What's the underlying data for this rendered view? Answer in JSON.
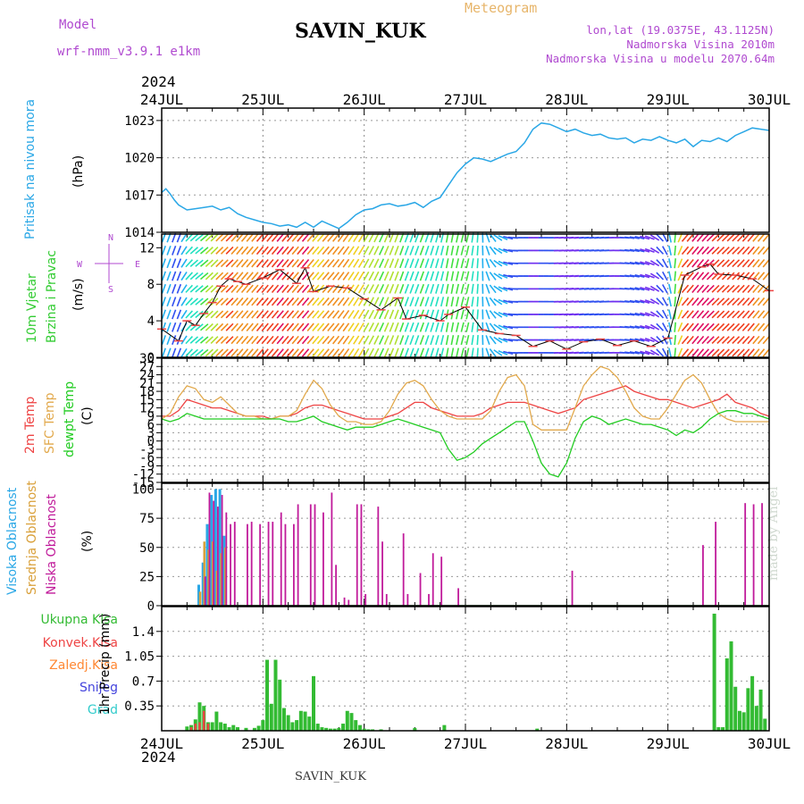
{
  "header": {
    "model_label": "Model",
    "model_name": "wrf-nmm_v3.9.1 e1km",
    "station": "SAVIN_KUK",
    "title": "Meteogram",
    "lonlat": "lon,lat (19.0375E, 43.1125N)",
    "altitude": "Nadmorska Visina 2010m",
    "model_altitude": "Nadmorska Visina u modelu 2070.64m"
  },
  "time_axis": {
    "year": "2024",
    "labels": [
      "24JUL",
      "25JUL",
      "26JUL",
      "27JUL",
      "28JUL",
      "29JUL",
      "30JUL"
    ]
  },
  "footer": {
    "station": "SAVIN_KUK",
    "credit": "made by Angel"
  },
  "colors": {
    "pressure": "#2aa7e6",
    "temp2m": "#ee4444",
    "sfc_temp": "#e2a94c",
    "dewpoint": "#22cc22",
    "high_cloud": "#2aa7e6",
    "mid_cloud": "#d9a03a",
    "low_cloud": "#c01a9a",
    "total_precip": "#33bb33",
    "conv_precip": "#ee4444",
    "frozen_precip": "#ff8833",
    "snow": "#4444dd",
    "hail": "#33cccc",
    "wind_label": "#33cc33",
    "wind_dir": "#b04ad0"
  },
  "chart_data": [
    {
      "type": "line",
      "panel": "pressure",
      "ylabel": "(hPa)",
      "side_label": "Pritisak na nivou mora",
      "ylim": [
        1014,
        1024
      ],
      "yticks": [
        "1014",
        "1017",
        "1020",
        "1023"
      ],
      "x_hours_from_24jul": [
        0,
        1,
        2,
        3,
        4,
        6,
        8,
        10,
        12,
        14,
        16,
        18,
        20,
        22,
        24,
        26,
        28,
        30,
        32,
        34,
        36,
        38,
        40,
        42,
        44,
        46,
        48,
        50,
        52,
        54,
        56,
        58,
        60,
        62,
        64,
        66,
        68,
        70,
        72,
        74,
        76,
        78,
        80,
        82,
        84,
        86,
        88,
        90,
        92,
        94,
        96,
        98,
        100,
        102,
        104,
        106,
        108,
        110,
        112,
        114,
        116,
        118,
        120,
        122,
        124,
        126,
        128,
        130,
        132,
        134,
        136,
        138,
        140,
        142,
        144
      ],
      "series": [
        {
          "name": "Pritisak na nivou mora",
          "values": [
            1017.2,
            1017.5,
            1017.1,
            1016.6,
            1016.2,
            1015.8,
            1015.9,
            1016.0,
            1016.1,
            1015.8,
            1016.0,
            1015.5,
            1015.2,
            1015.0,
            1014.8,
            1014.7,
            1014.5,
            1014.6,
            1014.4,
            1014.8,
            1014.4,
            1014.9,
            1014.6,
            1014.3,
            1014.8,
            1015.4,
            1015.8,
            1015.9,
            1016.2,
            1016.3,
            1016.1,
            1016.2,
            1016.4,
            1016.0,
            1016.5,
            1016.8,
            1017.8,
            1018.8,
            1019.5,
            1020.0,
            1019.9,
            1019.7,
            1020.0,
            1020.3,
            1020.5,
            1021.2,
            1022.3,
            1022.8,
            1022.7,
            1022.4,
            1022.1,
            1022.3,
            1022.0,
            1021.8,
            1021.9,
            1021.6,
            1021.5,
            1021.6,
            1021.2,
            1021.5,
            1021.4,
            1021.7,
            1021.4,
            1021.2,
            1021.5,
            1020.9,
            1021.4,
            1021.3,
            1021.6,
            1021.3,
            1021.8,
            1022.1,
            1022.4,
            1022.3,
            1022.2
          ]
        }
      ]
    },
    {
      "type": "line",
      "panel": "wind",
      "ylabel": "(m/s)",
      "side_label": [
        "10m Vjetar",
        "Brzina i Pravac"
      ],
      "direction_legend": {
        "n": "N",
        "s": "S",
        "w": "W",
        "e": "E"
      },
      "ylim": [
        0,
        13.5
      ],
      "yticks": [
        "0",
        "4",
        "8",
        "12"
      ],
      "x_hours_from_24jul": [
        0,
        4,
        6,
        8,
        10,
        12,
        14,
        16,
        18,
        20,
        24,
        28,
        32,
        34,
        36,
        40,
        44,
        48,
        52,
        56,
        58,
        62,
        66,
        68,
        72,
        76,
        80,
        84,
        88,
        92,
        96,
        100,
        104,
        108,
        112,
        116,
        120,
        124,
        128,
        130,
        132,
        136,
        140,
        144
      ],
      "series": [
        {
          "name": "10m Vjetar",
          "values": [
            3.1,
            1.8,
            4.0,
            3.5,
            4.8,
            6.0,
            7.8,
            8.6,
            8.3,
            8.0,
            8.7,
            9.6,
            8.1,
            9.8,
            7.2,
            7.8,
            7.6,
            6.4,
            5.2,
            6.5,
            4.2,
            4.6,
            4.0,
            4.7,
            5.5,
            3.0,
            2.6,
            2.4,
            1.2,
            1.8,
            0.9,
            1.7,
            2.0,
            1.3,
            1.8,
            1.2,
            2.1,
            9.0,
            9.9,
            10.2,
            9.1,
            9.0,
            8.6,
            7.3
          ]
        },
        {
          "name": "wind direction",
          "values_deg": [
            200,
            200,
            220,
            230,
            230,
            225,
            225,
            225,
            220,
            220,
            220,
            220,
            220,
            220,
            220,
            220,
            215,
            210,
            205,
            200,
            200,
            200,
            195,
            190,
            195,
            180,
            120,
            90,
            90,
            90,
            85,
            85,
            85,
            90,
            100,
            110,
            160,
            220,
            220,
            225,
            225,
            225,
            220,
            220
          ]
        }
      ]
    },
    {
      "type": "line",
      "panel": "temperature",
      "ylabel": "(C)",
      "side_labels": [
        "2m Temp",
        "SFC Temp",
        "dewpt Temp"
      ],
      "ylim": [
        -15,
        30
      ],
      "yticks": [
        "-15",
        "-12",
        "-9",
        "-6",
        "-3",
        "0",
        "3",
        "6",
        "9",
        "12",
        "15",
        "18",
        "21",
        "24",
        "27",
        "30"
      ],
      "x_hours_from_24jul": [
        0,
        2,
        4,
        6,
        8,
        10,
        12,
        14,
        16,
        18,
        20,
        22,
        24,
        26,
        28,
        30,
        32,
        34,
        36,
        38,
        40,
        42,
        44,
        46,
        48,
        50,
        52,
        54,
        56,
        58,
        60,
        62,
        64,
        66,
        68,
        70,
        72,
        74,
        76,
        78,
        80,
        82,
        84,
        86,
        88,
        90,
        92,
        94,
        96,
        98,
        100,
        102,
        104,
        106,
        108,
        110,
        112,
        114,
        116,
        118,
        120,
        122,
        124,
        126,
        128,
        130,
        132,
        134,
        136,
        138,
        140,
        142,
        144
      ],
      "series": [
        {
          "name": "2m Temp",
          "values": [
            9,
            9,
            11,
            15,
            14,
            13,
            12,
            12,
            11,
            10,
            9,
            9,
            9,
            8,
            9,
            9,
            10,
            12,
            13,
            13,
            12,
            11,
            10,
            9,
            8,
            8,
            8,
            9,
            10,
            12,
            14,
            14,
            12,
            11,
            10,
            9,
            9,
            9,
            10,
            12,
            13,
            14,
            14,
            14,
            13,
            12,
            11,
            10,
            11,
            12,
            15,
            16,
            17,
            18,
            19,
            20,
            18,
            17,
            16,
            15,
            15,
            14,
            13,
            12,
            13,
            14,
            15,
            17,
            14,
            13,
            12,
            10,
            9
          ]
        },
        {
          "name": "SFC Temp",
          "values": [
            8,
            10,
            16,
            20,
            19,
            15,
            14,
            16,
            13,
            10,
            9,
            9,
            8,
            8,
            9,
            9,
            11,
            17,
            22,
            19,
            13,
            9,
            7,
            7,
            6,
            6,
            7,
            11,
            17,
            21,
            22,
            20,
            15,
            11,
            9,
            8,
            8,
            8,
            8,
            11,
            18,
            23,
            24,
            20,
            6,
            4,
            4,
            4,
            4,
            12,
            20,
            24,
            27,
            26,
            23,
            18,
            12,
            9,
            8,
            8,
            12,
            17,
            22,
            24,
            21,
            15,
            10,
            8,
            7,
            7,
            7,
            7,
            7
          ]
        },
        {
          "name": "dewpt Temp",
          "values": [
            8,
            7,
            8,
            10,
            9,
            8,
            8,
            8,
            8,
            8,
            8,
            8,
            8,
            8,
            8,
            7,
            7,
            8,
            9,
            7,
            6,
            5,
            4,
            5,
            5,
            5,
            6,
            7,
            8,
            7,
            6,
            5,
            4,
            3,
            -3,
            -7,
            -6,
            -4,
            -1,
            1,
            3,
            5,
            7,
            7,
            0,
            -8,
            -12,
            -13,
            -8,
            1,
            7,
            9,
            8,
            6,
            7,
            8,
            7,
            6,
            6,
            5,
            4,
            2,
            4,
            3,
            5,
            8,
            10,
            11,
            11,
            10,
            10,
            9,
            8
          ]
        }
      ]
    },
    {
      "type": "bar",
      "panel": "cloud",
      "ylabel": "(%)",
      "side_labels": [
        "Visoka Oblacnost",
        "Srednja Oblacnost",
        "Niska Oblacnost"
      ],
      "ylim": [
        0,
        105
      ],
      "yticks": [
        "0",
        "25",
        "50",
        "75",
        "100"
      ],
      "series": [
        {
          "name": "Visoka Oblacnost",
          "x_hours": [
            9,
            10,
            11,
            12,
            13,
            14,
            15
          ],
          "values": [
            18,
            37,
            70,
            95,
            100,
            100,
            60
          ]
        },
        {
          "name": "Srednja Oblacnost",
          "x_hours": [
            9,
            10,
            11,
            12,
            13,
            14,
            15
          ],
          "values": [
            12,
            55,
            48,
            55,
            30,
            45,
            50
          ]
        },
        {
          "name": "Niska Oblacnost",
          "x_hours": [
            10,
            11,
            12,
            13,
            14,
            15,
            16,
            17,
            20,
            21,
            23,
            25,
            26,
            28,
            29,
            31,
            32,
            35,
            36,
            38,
            40,
            41,
            43,
            44,
            46,
            47,
            48,
            51,
            52,
            53,
            57,
            58,
            61,
            63,
            64,
            66,
            70,
            97,
            128,
            131,
            138,
            140,
            142
          ],
          "values": [
            25,
            97,
            90,
            85,
            95,
            80,
            70,
            72,
            70,
            72,
            70,
            72,
            72,
            80,
            70,
            70,
            87,
            87,
            87,
            80,
            97,
            35,
            7,
            5,
            87,
            87,
            10,
            85,
            55,
            10,
            62,
            10,
            28,
            10,
            45,
            42,
            15,
            30,
            52,
            72,
            88,
            87,
            88
          ]
        }
      ]
    },
    {
      "type": "bar",
      "panel": "precip",
      "ylabel": "1hr Precip (mm)",
      "side_labels": [
        "Ukupna Kisa",
        "Konvek.Kisa",
        "Zaledj.Kisa",
        "Snijeg",
        "Grad"
      ],
      "ylim": [
        0,
        1.75
      ],
      "yticks": [
        "0.35",
        "0.7",
        "1.05",
        "1.4"
      ],
      "series": [
        {
          "name": "Ukupna Kisa",
          "x_hours": [
            6,
            7,
            8,
            9,
            10,
            11,
            12,
            13,
            14,
            15,
            16,
            17,
            18,
            20,
            22,
            23,
            24,
            25,
            26,
            27,
            28,
            29,
            30,
            31,
            32,
            33,
            34,
            35,
            36,
            37,
            38,
            39,
            40,
            41,
            42,
            43,
            44,
            45,
            46,
            47,
            48,
            49,
            50,
            52,
            60,
            67,
            89,
            131,
            132,
            133,
            134,
            135,
            136,
            137,
            138,
            139,
            140,
            141,
            142,
            143
          ],
          "values": [
            0.06,
            0.08,
            0.16,
            0.4,
            0.35,
            0.12,
            0.12,
            0.27,
            0.12,
            0.1,
            0.05,
            0.08,
            0.05,
            0.04,
            0.04,
            0.07,
            0.15,
            1.0,
            0.38,
            1.0,
            0.72,
            0.32,
            0.22,
            0.12,
            0.15,
            0.28,
            0.27,
            0.2,
            0.77,
            0.1,
            0.05,
            0.04,
            0.03,
            0.03,
            0.04,
            0.1,
            0.28,
            0.25,
            0.15,
            0.08,
            0.03,
            0.02,
            0.02,
            0.02,
            0.04,
            0.08,
            0.03,
            1.65,
            0.05,
            0.05,
            1.02,
            1.26,
            0.62,
            0.28,
            0.26,
            0.6,
            0.77,
            0.35,
            0.58,
            0.17
          ]
        },
        {
          "name": "Konvek.Kisa",
          "x_hours": [
            7,
            8,
            9,
            10,
            11
          ],
          "values": [
            0.05,
            0.1,
            0.12,
            0.28,
            0.1
          ]
        },
        {
          "name": "Zaledj.Kisa",
          "x_hours": [],
          "values": []
        },
        {
          "name": "Snijeg",
          "x_hours": [],
          "values": []
        },
        {
          "name": "Grad",
          "x_hours": [],
          "values": []
        }
      ]
    }
  ]
}
